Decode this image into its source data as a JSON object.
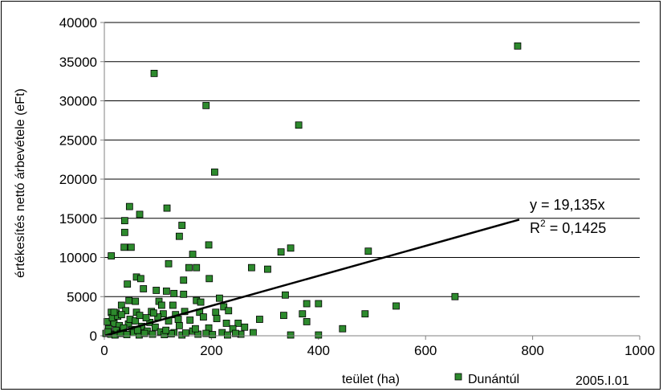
{
  "chart_data": {
    "type": "scatter",
    "title": "",
    "xlabel": "teület (ha)",
    "ylabel": "értékesítés nettó árbevétele (eFt)",
    "xlim": [
      0,
      1000
    ],
    "ylim": [
      0,
      40000
    ],
    "x_ticks": [
      0,
      200,
      400,
      600,
      800,
      1000
    ],
    "y_ticks": [
      0,
      5000,
      10000,
      15000,
      20000,
      25000,
      30000,
      35000,
      40000
    ],
    "grid": "horizontal",
    "legend_position": "bottom",
    "series": [
      {
        "name": "Dunántúl",
        "color": "#2d8a2d",
        "marker": "square",
        "points": [
          [
            772,
            37000
          ],
          [
            93,
            33500
          ],
          [
            190,
            29400
          ],
          [
            363,
            26900
          ],
          [
            206,
            20900
          ],
          [
            117,
            16300
          ],
          [
            47,
            16500
          ],
          [
            66,
            15500
          ],
          [
            38,
            14700
          ],
          [
            145,
            14100
          ],
          [
            38,
            13200
          ],
          [
            140,
            12700
          ],
          [
            195,
            11600
          ],
          [
            37,
            11300
          ],
          [
            50,
            11300
          ],
          [
            348,
            11200
          ],
          [
            330,
            10700
          ],
          [
            493,
            10800
          ],
          [
            165,
            10400
          ],
          [
            13,
            10200
          ],
          [
            120,
            9200
          ],
          [
            158,
            8700
          ],
          [
            172,
            8700
          ],
          [
            275,
            8700
          ],
          [
            305,
            8500
          ],
          [
            60,
            7500
          ],
          [
            68,
            7300
          ],
          [
            196,
            7300
          ],
          [
            148,
            7100
          ],
          [
            43,
            6600
          ],
          [
            73,
            6000
          ],
          [
            97,
            5800
          ],
          [
            116,
            5700
          ],
          [
            130,
            5400
          ],
          [
            148,
            5300
          ],
          [
            338,
            5200
          ],
          [
            215,
            4800
          ],
          [
            655,
            5000
          ],
          [
            46,
            4500
          ],
          [
            58,
            4400
          ],
          [
            102,
            4400
          ],
          [
            107,
            3900
          ],
          [
            172,
            4500
          ],
          [
            180,
            4300
          ],
          [
            378,
            4100
          ],
          [
            400,
            4100
          ],
          [
            32,
            3900
          ],
          [
            128,
            3900
          ],
          [
            223,
            3700
          ],
          [
            545,
            3800
          ],
          [
            13,
            3000
          ],
          [
            22,
            2900
          ],
          [
            40,
            3200
          ],
          [
            60,
            3000
          ],
          [
            88,
            3100
          ],
          [
            110,
            2800
          ],
          [
            133,
            2700
          ],
          [
            150,
            3100
          ],
          [
            178,
            3000
          ],
          [
            208,
            3000
          ],
          [
            232,
            3200
          ],
          [
            370,
            2800
          ],
          [
            487,
            2800
          ],
          [
            335,
            2600
          ],
          [
            290,
            2100
          ],
          [
            378,
            1800
          ],
          [
            250,
            1600
          ],
          [
            85,
            1700
          ],
          [
            120,
            1900
          ],
          [
            160,
            2000
          ],
          [
            5,
            1800
          ],
          [
            18,
            1600
          ],
          [
            28,
            1300
          ],
          [
            45,
            1500
          ],
          [
            70,
            1200
          ],
          [
            95,
            1100
          ],
          [
            140,
            1300
          ],
          [
            195,
            1000
          ],
          [
            240,
            900
          ],
          [
            262,
            1100
          ],
          [
            445,
            900
          ],
          [
            8,
            900
          ],
          [
            22,
            700
          ],
          [
            35,
            500
          ],
          [
            52,
            800
          ],
          [
            80,
            600
          ],
          [
            105,
            500
          ],
          [
            130,
            400
          ],
          [
            165,
            600
          ],
          [
            190,
            300
          ],
          [
            220,
            400
          ],
          [
            255,
            200
          ],
          [
            278,
            400
          ],
          [
            348,
            100
          ],
          [
            400,
            100
          ],
          [
            3,
            300
          ],
          [
            12,
            200
          ],
          [
            20,
            100
          ],
          [
            30,
            300
          ],
          [
            42,
            150
          ],
          [
            55,
            400
          ],
          [
            65,
            100
          ],
          [
            75,
            300
          ],
          [
            90,
            200
          ],
          [
            112,
            150
          ],
          [
            125,
            250
          ],
          [
            145,
            100
          ],
          [
            152,
            350
          ],
          [
            175,
            200
          ],
          [
            202,
            150
          ],
          [
            230,
            100
          ],
          [
            245,
            300
          ],
          [
            15,
            2300
          ],
          [
            25,
            2500
          ],
          [
            48,
            2100
          ],
          [
            58,
            1900
          ],
          [
            78,
            2300
          ],
          [
            100,
            2400
          ],
          [
            138,
            2100
          ],
          [
            185,
            2400
          ],
          [
            210,
            2200
          ],
          [
            7,
            500
          ],
          [
            36,
            1000
          ],
          [
            62,
            700
          ],
          [
            115,
            700
          ],
          [
            170,
            900
          ],
          [
            228,
            1600
          ],
          [
            18,
            3000
          ],
          [
            32,
            2700
          ],
          [
            66,
            2600
          ],
          [
            92,
            2900
          ]
        ]
      }
    ],
    "trendline": {
      "type": "linear-through-origin",
      "slope": 19.135,
      "x_range": [
        0,
        775
      ],
      "equation": "y = 19,135x",
      "r2_label": "R",
      "r2_exponent": "2",
      "r2_value": " = 0,1425"
    }
  },
  "footer": {
    "date": "2005.I.01"
  }
}
